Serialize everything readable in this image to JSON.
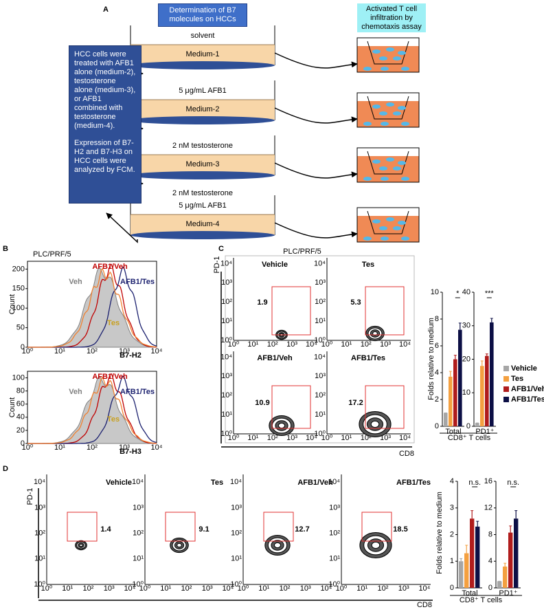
{
  "figure": {
    "panel_a": {
      "label": "A",
      "b7_header": "Determination of B7 molecules on HCCs",
      "chemotaxis_header": "Activated T cell infiltration by chemotaxis assay",
      "description": [
        "HCC cells were treated with AFB1 alone (medium-2), testosterone alone (medium-3), or AFB1 combined with testosterone (medium-4).",
        "Expression of B7-H2 and B7-H3 on HCC cells were analyzed by FCM."
      ],
      "conditions": [
        {
          "treatment": [
            "solvent"
          ],
          "medium": "Medium-1"
        },
        {
          "treatment": [
            "5 μg/mL AFB1"
          ],
          "medium": "Medium-2"
        },
        {
          "treatment": [
            "2 nM testosterone"
          ],
          "medium": "Medium-3"
        },
        {
          "treatment": [
            "2 nM testosterone",
            "5 μg/mL AFB1"
          ],
          "medium": "Medium-4"
        }
      ]
    },
    "panel_b": {
      "label": "B",
      "cell_line": "PLC/PRF/5",
      "y_label": "Count",
      "log_ticks": [
        "10⁰",
        "10¹",
        "10²",
        "10³",
        "10⁴"
      ],
      "histograms": [
        {
          "marker": "B7-H2",
          "ylim": [
            0,
            220
          ],
          "yticks": [
            0,
            50,
            100,
            150,
            200
          ]
        },
        {
          "marker": "B7-H3",
          "ylim": [
            0,
            110
          ],
          "yticks": [
            0,
            20,
            40,
            60,
            80,
            100
          ]
        }
      ],
      "curves": [
        {
          "name": "Veh",
          "color": "#808080"
        },
        {
          "name": "AFB1/Veh",
          "color": "#c00000"
        },
        {
          "name": "AFB1/Tes",
          "color": "#1a1f6e"
        },
        {
          "name": "Tes",
          "color": "#c8a020"
        }
      ]
    },
    "panel_c": {
      "label": "C",
      "cell_line": "PLC/PRF/5",
      "y_axis": "PD-1",
      "x_axis": "CD8",
      "plots": [
        {
          "title": "Vehicle",
          "gate": 1.9
        },
        {
          "title": "Tes",
          "gate": 5.3
        },
        {
          "title": "AFB1/Veh",
          "gate": 10.9
        },
        {
          "title": "AFB1/Tes",
          "gate": 17.2
        }
      ],
      "legend": [
        {
          "name": "Vehicle",
          "color": "#a6a6a6"
        },
        {
          "name": "Tes",
          "color": "#f4a040"
        },
        {
          "name": "AFB1/Veh",
          "color": "#b01c1c"
        },
        {
          "name": "AFB1/Tes",
          "color": "#0c0f45"
        }
      ],
      "bar_y_label": "Folds relative to medium",
      "bar_x_label": "CD8⁺ T cells"
    },
    "panel_d": {
      "label": "D",
      "y_axis": "PD-1",
      "x_axis": "CD8",
      "plots": [
        {
          "title": "Vehicle",
          "gate": 1.4
        },
        {
          "title": "Tes",
          "gate": 9.1
        },
        {
          "title": "AFB1/Veh",
          "gate": 12.7
        },
        {
          "title": "AFB1/Tes",
          "gate": 18.5
        }
      ],
      "bar_y_label": "Folds relative to medium",
      "bar_x_label": "CD8⁺ T cells"
    }
  },
  "chart_data": [
    {
      "type": "bar",
      "category": "Total",
      "values": [
        1,
        3.7,
        5,
        7.2
      ],
      "errors": [
        0,
        0.4,
        0.3,
        0.5
      ],
      "ylim": [
        0,
        10
      ],
      "yticks": [
        0,
        2,
        4,
        6,
        8,
        10
      ],
      "significance": "*"
    },
    {
      "type": "bar",
      "category": "PD1⁺",
      "values": [
        1,
        18,
        21,
        31
      ],
      "errors": [
        0,
        1.5,
        0.6,
        1.2
      ],
      "ylim": [
        0,
        40
      ],
      "yticks": [
        0,
        10,
        20,
        30,
        40
      ],
      "significance": "***"
    },
    {
      "type": "bar",
      "category": "Total",
      "values": [
        1,
        1.3,
        2.6,
        2.3
      ],
      "errors": [
        0.1,
        0.3,
        0.3,
        0.2
      ],
      "ylim": [
        0,
        4
      ],
      "yticks": [
        0,
        1,
        2,
        3,
        4
      ],
      "significance": "n.s."
    },
    {
      "type": "bar",
      "category": "PD1⁺",
      "values": [
        1,
        3.2,
        8.3,
        10.4
      ],
      "errors": [
        0,
        0.5,
        1,
        1.2
      ],
      "ylim": [
        0,
        16
      ],
      "yticks": [
        0,
        4,
        8,
        12,
        16
      ],
      "significance": "n.s."
    }
  ]
}
